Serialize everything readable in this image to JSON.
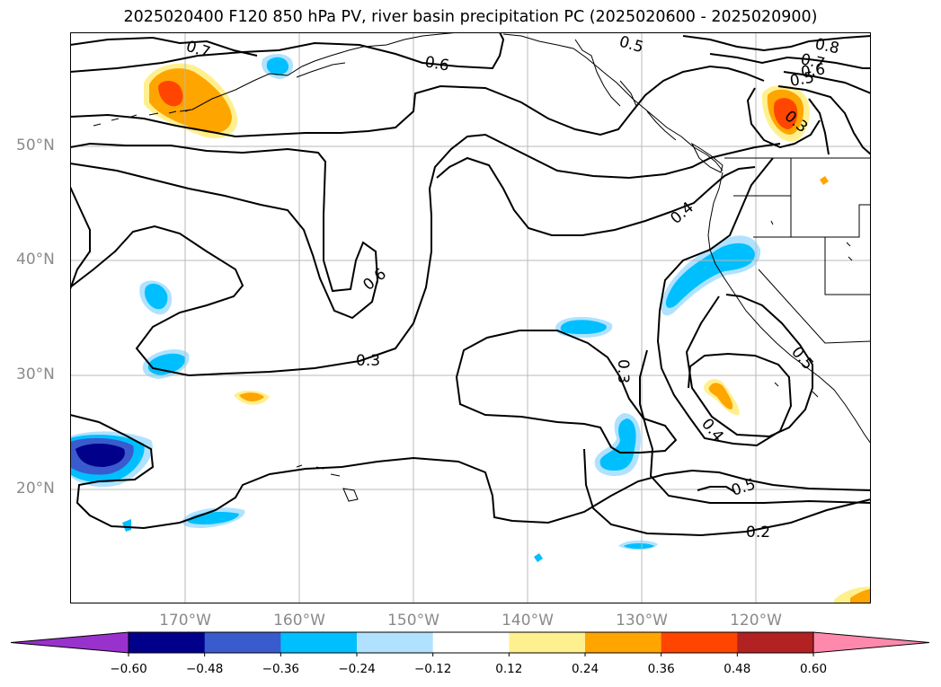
{
  "title": "2025020400 F120 850 hPa PV, river basin precipitation PC (2025020600 - 2025020900)",
  "lat_labels": [
    "50°N",
    "40°N",
    "30°N",
    "20°N"
  ],
  "lon_labels": [
    "170°W",
    "160°W",
    "150°W",
    "140°W",
    "130°W",
    "120°W"
  ],
  "contour_labels": [
    "0.7",
    "0.6",
    "0.5",
    "0.8",
    "0.7",
    "0.6",
    "0.5",
    "0.3",
    "0.4",
    "0.6",
    "0.3",
    "0.3",
    "0.4",
    "0.5",
    "0.5",
    "0.2"
  ],
  "colorbar": {
    "ticks": [
      "−0.60",
      "−0.48",
      "−0.36",
      "−0.24",
      "−0.12",
      "0.12",
      "0.24",
      "0.36",
      "0.48",
      "0.60"
    ],
    "colors": {
      "under": "#9932cc",
      "bins": [
        "#00008b",
        "#3a5bcd",
        "#00bfff",
        "#b0e2ff",
        "#ffffff",
        "#fff08f",
        "#ffa500",
        "#ff4500",
        "#b22222"
      ],
      "over": "#ff89ad"
    }
  }
}
